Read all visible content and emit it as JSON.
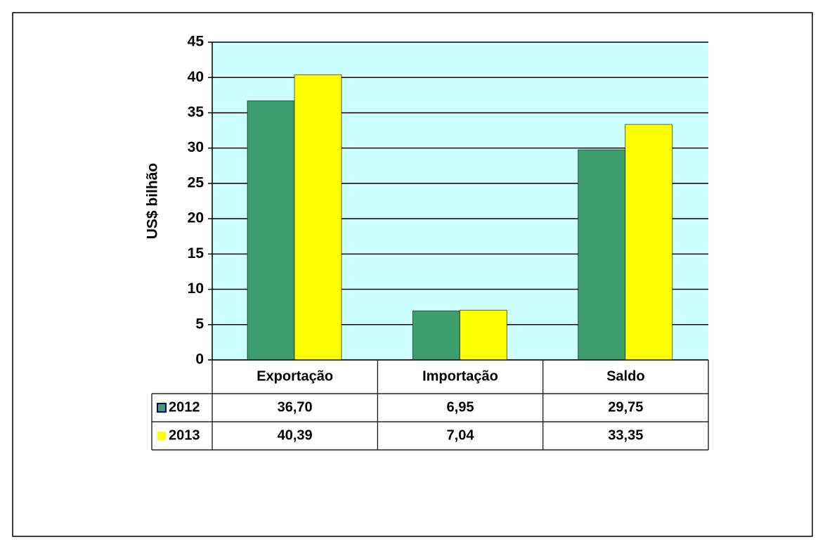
{
  "chart_data": {
    "type": "bar",
    "y_label": "US$ bilhão",
    "categories": [
      "Exportação",
      "Importação",
      "Saldo"
    ],
    "series": [
      {
        "name": "2012",
        "color": "#3c9e6c",
        "values": [
          36.7,
          6.95,
          29.75
        ],
        "value_labels": [
          "36,70",
          "6,95",
          "29,75"
        ]
      },
      {
        "name": "2013",
        "color": "#ffff00",
        "values": [
          40.39,
          7.04,
          33.35
        ],
        "value_labels": [
          "40,39",
          "7,04",
          "33,35"
        ]
      }
    ],
    "ylim": [
      0,
      45
    ],
    "yticks": [
      0,
      5,
      10,
      15,
      20,
      25,
      30,
      35,
      40,
      45
    ],
    "grid": true
  }
}
